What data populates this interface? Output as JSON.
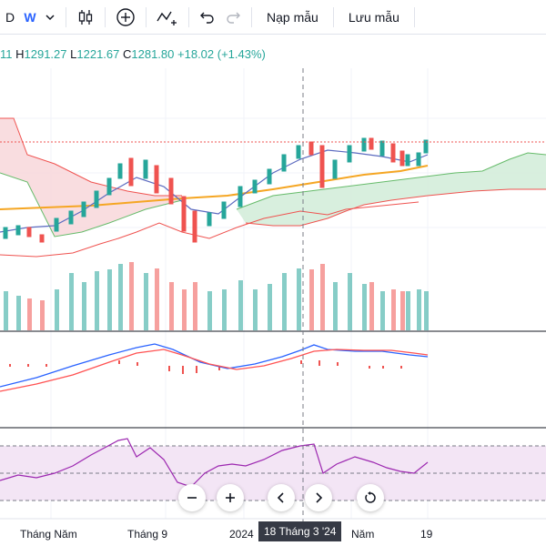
{
  "toolbar": {
    "interval_label": "D",
    "w_label": "W",
    "indicators_label": "Nạp mẫu",
    "save_label": "Lưu mẫu"
  },
  "ohlc": {
    "open_partial": "11",
    "high_key": "H",
    "high": "1291.27",
    "low_key": "L",
    "low": "1221.67",
    "close_key": "C",
    "close": "1281.80",
    "change": "+18.02 (+1.43%)"
  },
  "x_axis": {
    "labels": [
      "Tháng Năm",
      "Tháng 9",
      "2024",
      "Năm",
      "19"
    ],
    "crosshair_label": "18 Tháng 3 '24"
  },
  "colors": {
    "up": "#26a69a",
    "down": "#ef5350",
    "cloud_up": "#d4edda",
    "cloud_down": "#f8d7da",
    "ma_orange": "#f5a623",
    "rsi_band": "#f3e5f5",
    "rsi_line": "#9c27b0",
    "macd_line": "#2962ff",
    "signal_line": "#ff5252"
  },
  "controls": [
    "zoom-out",
    "zoom-in",
    "scroll-left",
    "scroll-right",
    "reset"
  ]
}
